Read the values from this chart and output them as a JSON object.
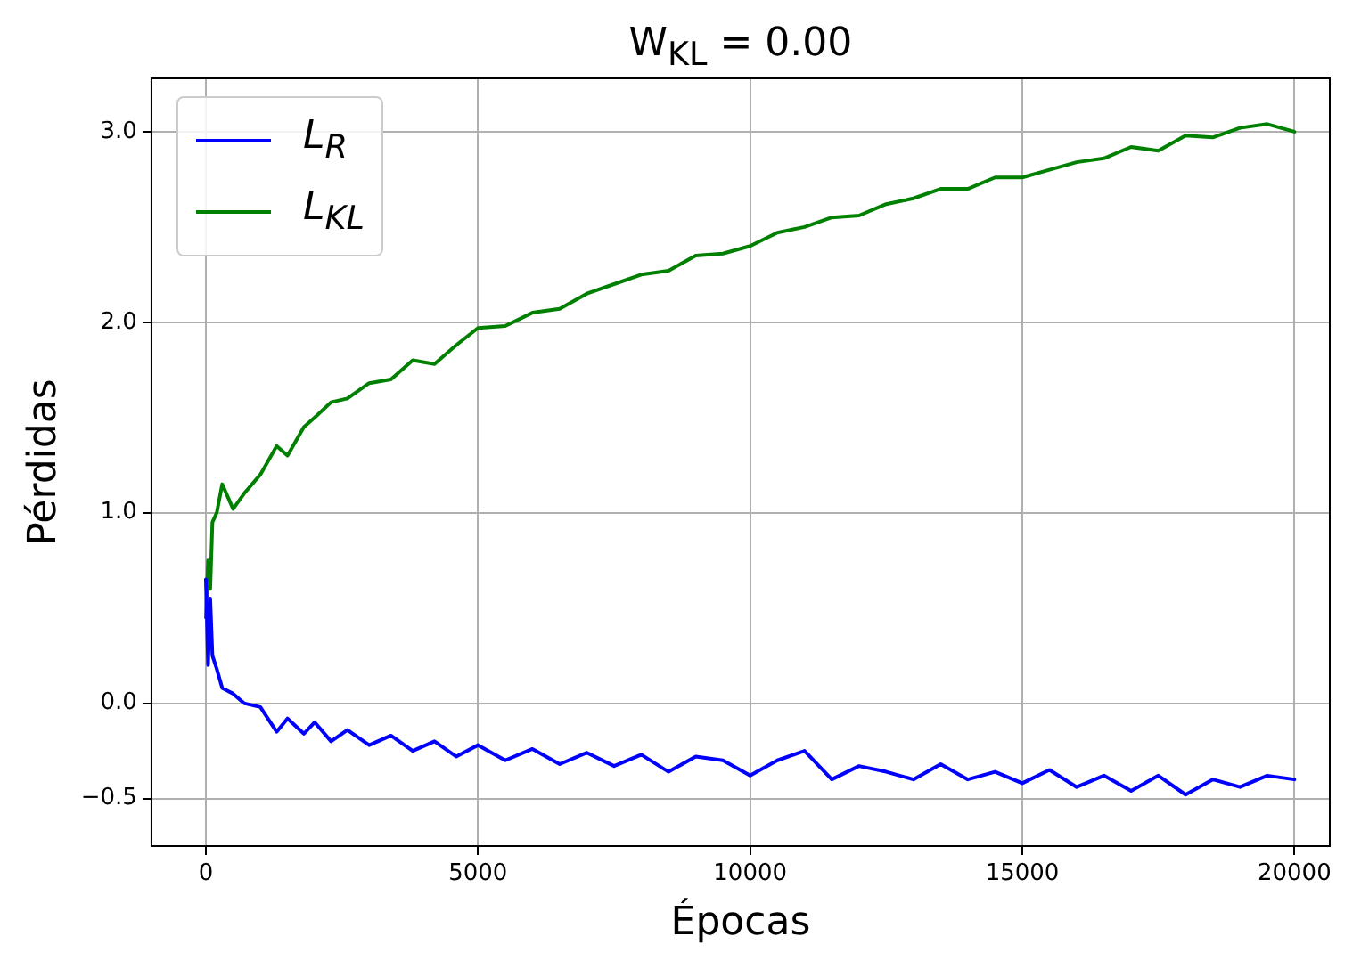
{
  "chart_data": {
    "type": "line",
    "title": "W$_{KL}$ = 0.00",
    "xlabel": "Épocas",
    "ylabel": "Pérdidas",
    "xlim": [
      -1000,
      20650
    ],
    "xticks": [
      0,
      5000,
      10000,
      15000,
      20000
    ],
    "ylim": [
      -0.75,
      3.28
    ],
    "yticks": [
      {
        "value": -0.5,
        "label": "−0.5"
      },
      {
        "value": 0,
        "label": "0.0"
      },
      {
        "value": 1,
        "label": "1.0"
      },
      {
        "value": 2,
        "label": "2.0"
      },
      {
        "value": 3,
        "label": "3.0"
      }
    ],
    "grid": true,
    "legend": "top left",
    "marker": "none",
    "line_style": "solid",
    "series": [
      {
        "name": "L$_{R}$",
        "color": "#0000ff",
        "x": [
          0,
          40,
          80,
          120,
          200,
          300,
          500,
          700,
          1000,
          1300,
          1500,
          1800,
          2000,
          2300,
          2600,
          3000,
          3400,
          3800,
          4200,
          4600,
          5000,
          5500,
          6000,
          6500,
          7000,
          7500,
          8000,
          8500,
          9000,
          9500,
          10000,
          10500,
          11000,
          11500,
          12000,
          12500,
          13000,
          13500,
          14000,
          14500,
          15000,
          15500,
          16000,
          16500,
          17000,
          17500,
          18000,
          18500,
          19000,
          19500,
          20000
        ],
        "values": [
          0.65,
          0.2,
          0.55,
          0.25,
          0.18,
          0.08,
          0.05,
          0.0,
          -0.02,
          -0.15,
          -0.08,
          -0.16,
          -0.1,
          -0.2,
          -0.14,
          -0.22,
          -0.17,
          -0.25,
          -0.2,
          -0.28,
          -0.22,
          -0.3,
          -0.24,
          -0.32,
          -0.26,
          -0.33,
          -0.27,
          -0.36,
          -0.28,
          -0.3,
          -0.38,
          -0.3,
          -0.25,
          -0.4,
          -0.33,
          -0.36,
          -0.4,
          -0.32,
          -0.4,
          -0.36,
          -0.42,
          -0.35,
          -0.44,
          -0.38,
          -0.46,
          -0.38,
          -0.48,
          -0.4,
          -0.44,
          -0.38,
          -0.4
        ]
      },
      {
        "name": "L$_{KL}$",
        "color": "#008000",
        "x": [
          0,
          40,
          80,
          120,
          200,
          300,
          500,
          700,
          1000,
          1300,
          1500,
          1800,
          2000,
          2300,
          2600,
          3000,
          3400,
          3800,
          4200,
          4600,
          5000,
          5500,
          6000,
          6500,
          7000,
          7500,
          8000,
          8500,
          9000,
          9500,
          10000,
          10500,
          11000,
          11500,
          12000,
          12500,
          13000,
          13500,
          14000,
          14500,
          15000,
          15500,
          16000,
          16500,
          17000,
          17500,
          18000,
          18500,
          19000,
          19500,
          20000
        ],
        "values": [
          0.45,
          0.75,
          0.6,
          0.95,
          1.0,
          1.15,
          1.02,
          1.1,
          1.2,
          1.35,
          1.3,
          1.45,
          1.5,
          1.58,
          1.6,
          1.68,
          1.7,
          1.8,
          1.78,
          1.88,
          1.97,
          1.98,
          2.05,
          2.07,
          2.15,
          2.2,
          2.25,
          2.27,
          2.35,
          2.36,
          2.4,
          2.47,
          2.5,
          2.55,
          2.56,
          2.62,
          2.65,
          2.7,
          2.7,
          2.76,
          2.76,
          2.8,
          2.84,
          2.86,
          2.92,
          2.9,
          2.98,
          2.97,
          3.02,
          3.04,
          3.0
        ]
      }
    ]
  }
}
